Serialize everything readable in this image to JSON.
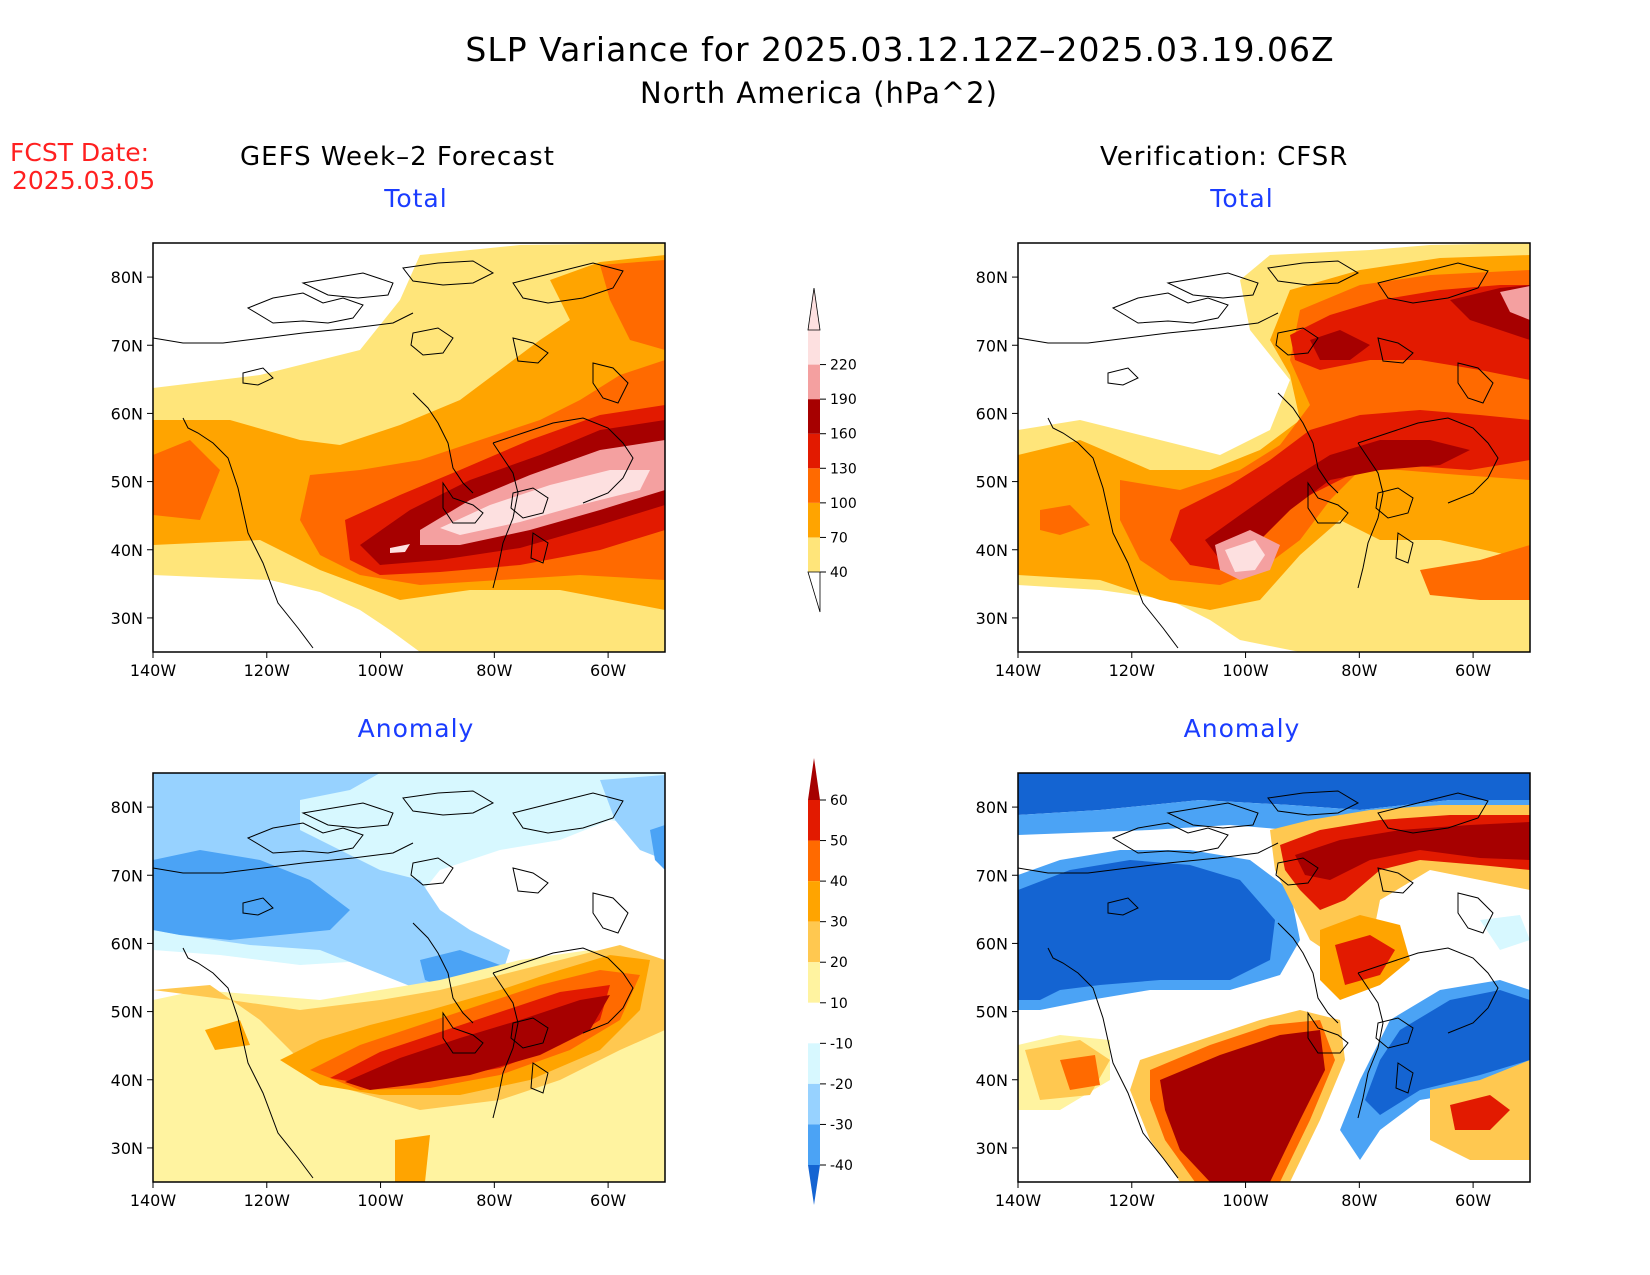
{
  "header": {
    "title_line1": "SLP Variance for 2025.03.12.12Z–2025.03.19.06Z",
    "title_line2": "North America (hPa^2)",
    "fcst_label": "FCST Date:",
    "fcst_value": "2025.03.05",
    "left_column": "GEFS Week–2 Forecast",
    "right_column": "Verification: CFSR"
  },
  "panels": [
    {
      "id": "forecast-total",
      "title": "Total",
      "scale": "total"
    },
    {
      "id": "verification-total",
      "title": "Total",
      "scale": "total"
    },
    {
      "id": "forecast-anomaly",
      "title": "Anomaly",
      "scale": "anomaly"
    },
    {
      "id": "verification-anomaly",
      "title": "Anomaly",
      "scale": "anomaly"
    }
  ],
  "axes": {
    "lat_labels": [
      "80N",
      "70N",
      "60N",
      "50N",
      "40N",
      "30N"
    ],
    "lon_labels": [
      "140W",
      "120W",
      "100W",
      "80W",
      "60W"
    ],
    "lon_range": [
      -140,
      -50
    ],
    "lat_range": [
      25,
      85
    ]
  },
  "colorbar_total": {
    "levels": [
      "40",
      "70",
      "100",
      "130",
      "160",
      "190",
      "220"
    ],
    "colors": [
      "#ffe57a",
      "#ffa400",
      "#ff6a00",
      "#e21a00",
      "#a60000",
      "#f4a0a0",
      "#fde0e0"
    ]
  },
  "colorbar_anomaly": {
    "levels": [
      "60",
      "50",
      "40",
      "30",
      "20",
      "10",
      "-10",
      "-20",
      "-30",
      "-40"
    ],
    "colors": [
      "#a60000",
      "#e21a00",
      "#ff6a00",
      "#ffa400",
      "#ffc850",
      "#fff3a0",
      "#ffffff",
      "#d7f8ff",
      "#97d2ff",
      "#4ba3f5",
      "#1464d2"
    ]
  }
}
